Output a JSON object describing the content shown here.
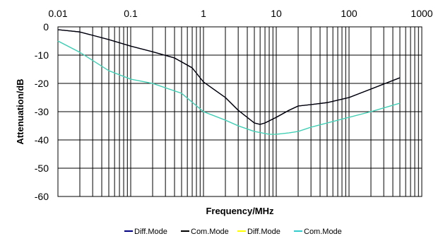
{
  "chart_data": {
    "type": "line",
    "xscale": "log",
    "xlim": [
      0.01,
      1000
    ],
    "ylim": [
      -60,
      0
    ],
    "x_ticks": [
      0.01,
      0.1,
      1,
      10,
      100,
      1000
    ],
    "x_tick_labels": [
      "0.01",
      "0.1",
      "1",
      "10",
      "100",
      "1000"
    ],
    "y_ticks": [
      0,
      -10,
      -20,
      -30,
      -40,
      -50,
      -60
    ],
    "y_tick_labels": [
      "0",
      "-10",
      "-20",
      "-30",
      "-40",
      "-50",
      "-60"
    ],
    "x_axis_position": "top",
    "grid": true,
    "xlabel": "Frequency/MHz",
    "ylabel": "Attenuation/dB",
    "legend_position": "bottom",
    "series": [
      {
        "name": "Diff.Mode",
        "color": "#000080",
        "x": [
          0.01,
          0.02,
          0.05,
          0.1,
          0.2,
          0.4,
          0.7,
          1,
          2,
          3,
          5,
          6,
          7,
          10,
          15,
          20,
          30,
          50,
          100,
          200,
          500
        ],
        "y": [
          -1,
          -1.8,
          -4.5,
          -6.8,
          -8.8,
          -11,
          -14.5,
          -19.5,
          -25,
          -29.5,
          -34,
          -34.5,
          -34,
          -32,
          -29.5,
          -28,
          -27.5,
          -26.8,
          -25,
          -22,
          -18
        ]
      },
      {
        "name": "Com.Mode",
        "color": "#000000",
        "x": [
          0.01,
          0.02,
          0.05,
          0.1,
          0.2,
          0.4,
          0.7,
          1,
          2,
          3,
          5,
          6,
          7,
          10,
          15,
          20,
          30,
          50,
          100,
          200,
          500
        ],
        "y": [
          -1,
          -1.8,
          -4.5,
          -6.8,
          -8.8,
          -11,
          -14.5,
          -19.5,
          -25,
          -29.5,
          -34,
          -34.5,
          -34,
          -32,
          -29.5,
          -28,
          -27.5,
          -26.8,
          -25,
          -22,
          -18
        ]
      },
      {
        "name": "Diff.Mode",
        "color": "#FFFF00",
        "x": [
          0.01,
          0.02,
          0.05,
          0.1,
          0.2,
          0.5,
          1,
          2,
          3,
          5,
          8,
          10,
          15,
          20,
          30,
          50,
          100,
          200,
          500
        ],
        "y": [
          -5,
          -9,
          -15.5,
          -18.5,
          -20,
          -23.5,
          -30,
          -33,
          -35,
          -37,
          -38,
          -38,
          -37.5,
          -37,
          -35.5,
          -34,
          -32,
          -30,
          -27
        ]
      },
      {
        "name": "Com.Mode",
        "color": "#33CCCC",
        "x": [
          0.01,
          0.02,
          0.05,
          0.1,
          0.2,
          0.5,
          1,
          2,
          3,
          5,
          8,
          10,
          15,
          20,
          30,
          50,
          100,
          200,
          500
        ],
        "y": [
          -5,
          -9,
          -15.5,
          -18.5,
          -20,
          -23.5,
          -30,
          -33,
          -35,
          -37,
          -38,
          -38,
          -37.5,
          -37,
          -35.5,
          -34,
          -32,
          -30,
          -27
        ]
      }
    ]
  }
}
